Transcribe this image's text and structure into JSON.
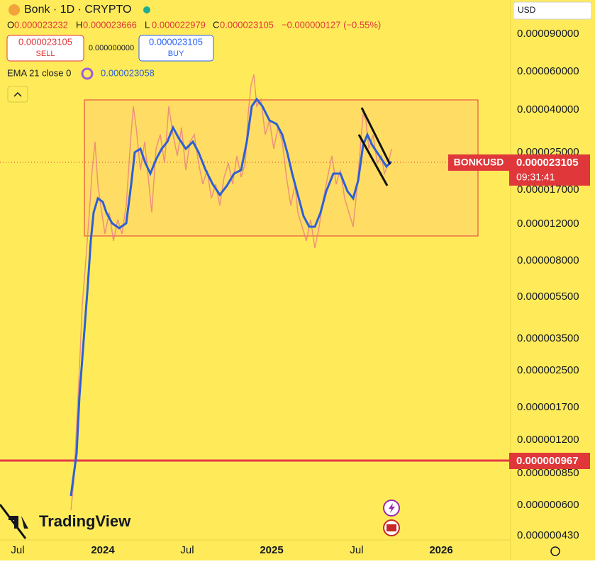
{
  "header": {
    "symbol": "Bonk · 1D · CRYPTO",
    "ohlc": [
      {
        "key": "O",
        "value": "0.000023232"
      },
      {
        "key": "H",
        "value": "0.000023666"
      },
      {
        "key": "L",
        "value": "0.000022979"
      },
      {
        "key": "C",
        "value": "0.000023105"
      }
    ],
    "change": "−0.000000127 (−0.55%)"
  },
  "trade": {
    "sell": {
      "price": "0.000023105",
      "label": "SELL"
    },
    "spread": "0.000000000",
    "buy": {
      "price": "0.000023105",
      "label": "BUY"
    }
  },
  "indicator": {
    "name": "EMA 21 close 0",
    "value": "0.000023058"
  },
  "currency": "USD",
  "price_axis": [
    "0.000090000",
    "0.000060000",
    "0.000040000",
    "0.000025000",
    "0.000017000",
    "0.000012000",
    "0.000008000",
    "0.000005500",
    "0.000003500",
    "0.000002500",
    "0.000001700",
    "0.000001200",
    "0.000000850",
    "0.000000600",
    "0.000000430"
  ],
  "time_axis": [
    "Jul",
    "2024",
    "Jul",
    "2025",
    "Jul",
    "2026"
  ],
  "last_price": {
    "symbol": "BONKUSD",
    "price": "0.000023105",
    "countdown": "09:31:41"
  },
  "level_label": "0.000000967",
  "logo": "TradingView"
}
